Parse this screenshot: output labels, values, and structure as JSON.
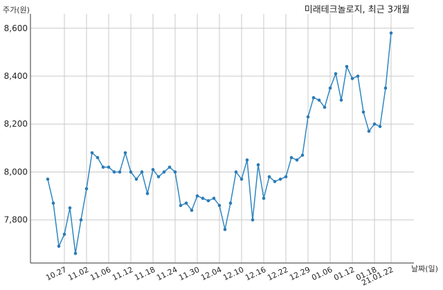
{
  "chart_data": {
    "type": "line",
    "title": "미래테크놀로지, 최근 3개월",
    "ylabel": "주가(원)",
    "xlabel": "날짜(일)",
    "ylim": [
      7620,
      8660
    ],
    "yticks": [
      7800,
      8000,
      8200,
      8400,
      8600
    ],
    "ytick_labels": [
      "7,800",
      "8,000",
      "8,200",
      "8,400",
      "8,600"
    ],
    "xtick_labels": [
      "10.27",
      "11.02",
      "11.06",
      "11.12",
      "11.18",
      "11.24",
      "11.30",
      "12.04",
      "12.10",
      "12.16",
      "12.22",
      "12.29",
      "01.06",
      "01.12",
      "01.18",
      "21.01.22"
    ],
    "xtick_index": [
      3,
      7,
      11,
      15,
      19,
      23,
      27,
      31,
      35,
      39,
      43,
      47,
      51,
      55,
      59,
      62
    ],
    "grid": true,
    "series": [
      {
        "values": [
          7970,
          7870,
          7690,
          7740,
          7850,
          7660,
          7800,
          7930,
          8080,
          8060,
          8020,
          8020,
          8000,
          8000,
          8080,
          8000,
          7970,
          8000,
          7910,
          8010,
          7980,
          8000,
          8020,
          8000,
          7860,
          7870,
          7840,
          7900,
          7890,
          7880,
          7890,
          7860,
          7760,
          7870,
          8000,
          7970,
          8050,
          7800,
          8030,
          7890,
          7980,
          7960,
          7970,
          7980,
          8060,
          8050,
          8070,
          8230,
          8310,
          8300,
          8270,
          8350,
          8410,
          8300,
          8440,
          8390,
          8400,
          8250,
          8170,
          8200,
          8190,
          8350,
          8580
        ]
      }
    ]
  }
}
